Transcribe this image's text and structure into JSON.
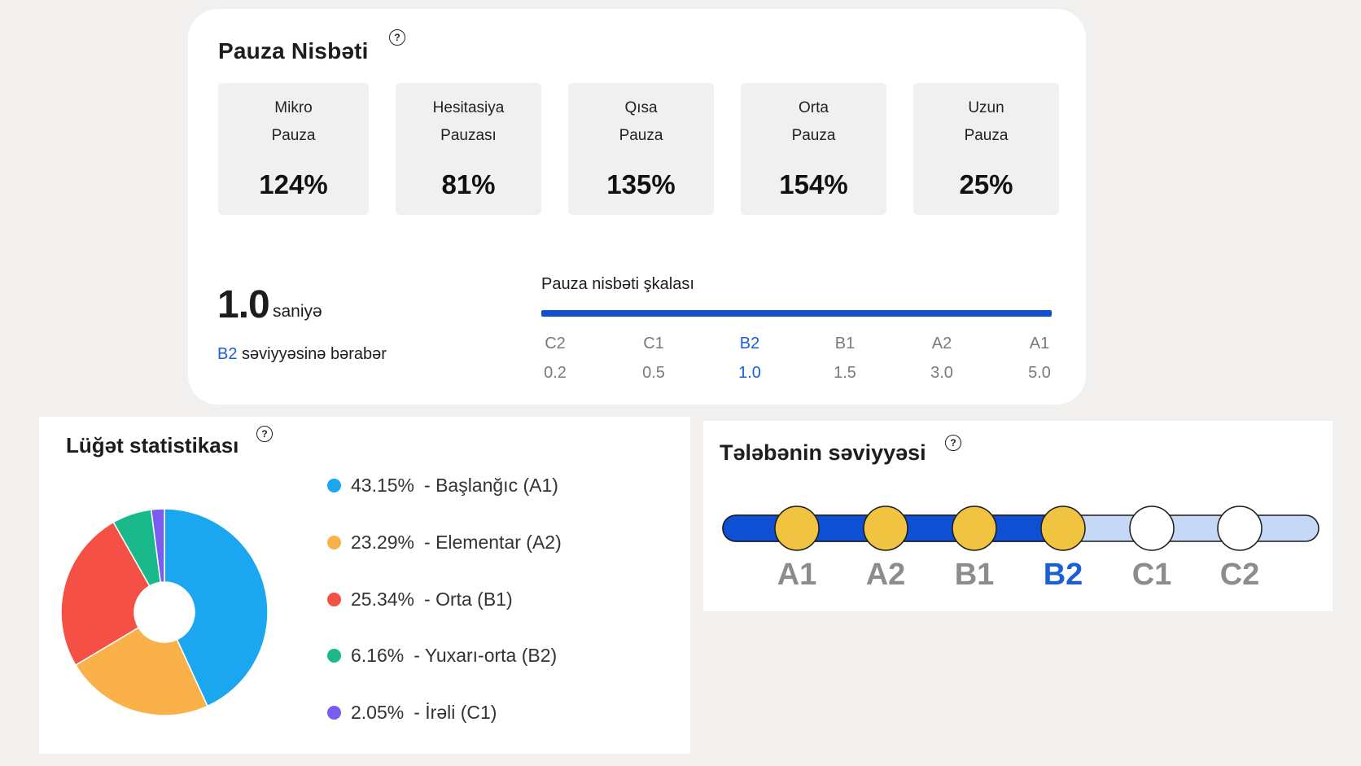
{
  "pause": {
    "title": "Pauza Nisbəti",
    "help_icon": "question-circle-icon",
    "tiles": [
      {
        "line1": "Mikro",
        "line2": "Pauza",
        "value": "124%"
      },
      {
        "line1": "Hesitasiya",
        "line2": "Pauzası",
        "value": "81%"
      },
      {
        "line1": "Qısa",
        "line2": "Pauza",
        "value": "135%"
      },
      {
        "line1": "Orta",
        "line2": "Pauza",
        "value": "154%"
      },
      {
        "line1": "Uzun",
        "line2": "Pauza",
        "value": "25%"
      }
    ],
    "seconds_value": "1.0",
    "seconds_unit": "saniyə",
    "equal_level": "B2",
    "equal_text": " səviyyəsinə bərabər",
    "scale": {
      "title": "Pauza nisbəti şkalası",
      "bar_color": "#0f4fd3",
      "levels": [
        {
          "level": "C2",
          "value": "0.2"
        },
        {
          "level": "C1",
          "value": "0.5"
        },
        {
          "level": "B2",
          "value": "1.0"
        },
        {
          "level": "B1",
          "value": "1.5"
        },
        {
          "level": "A2",
          "value": "3.0"
        },
        {
          "level": "A1",
          "value": "5.0"
        }
      ],
      "active_level": "B2"
    }
  },
  "vocab": {
    "title": "Lüğət statistikası",
    "help_icon": "question-circle-icon",
    "legend": [
      {
        "pct": "43.15%",
        "label": "- Başlanğıc (A1)",
        "color": "#1aa7f0"
      },
      {
        "pct": "23.29%",
        "label": "- Elementar (A2)",
        "color": "#fbb14a"
      },
      {
        "pct": "25.34%",
        "label": "- Orta (B1)",
        "color": "#f45045"
      },
      {
        "pct": "6.16%",
        "label": "- Yuxarı-orta (B2)",
        "color": "#19b98c"
      },
      {
        "pct": "2.05%",
        "label": "- İrəli (C1)",
        "color": "#7a5cf0"
      }
    ],
    "chart_data": {
      "type": "pie",
      "categories": [
        "Başlanğıc (A1)",
        "Elementar (A2)",
        "Orta (B1)",
        "Yuxarı-orta (B2)",
        "İrəli (C1)"
      ],
      "values": [
        43.15,
        23.29,
        25.34,
        6.16,
        2.05
      ],
      "colors": [
        "#1aa7f0",
        "#fbb14a",
        "#f45045",
        "#19b98c",
        "#7a5cf0"
      ],
      "legend": "right"
    }
  },
  "level": {
    "title": "Tələbənin səviyyəsi",
    "help_icon": "question-circle-icon",
    "levels": [
      "A1",
      "A2",
      "B1",
      "B2",
      "C1",
      "C2"
    ],
    "current_level": "B2",
    "filled_color": "#0f4fd3",
    "empty_color": "#c5d8f5",
    "reached_color": "#f0c341"
  }
}
